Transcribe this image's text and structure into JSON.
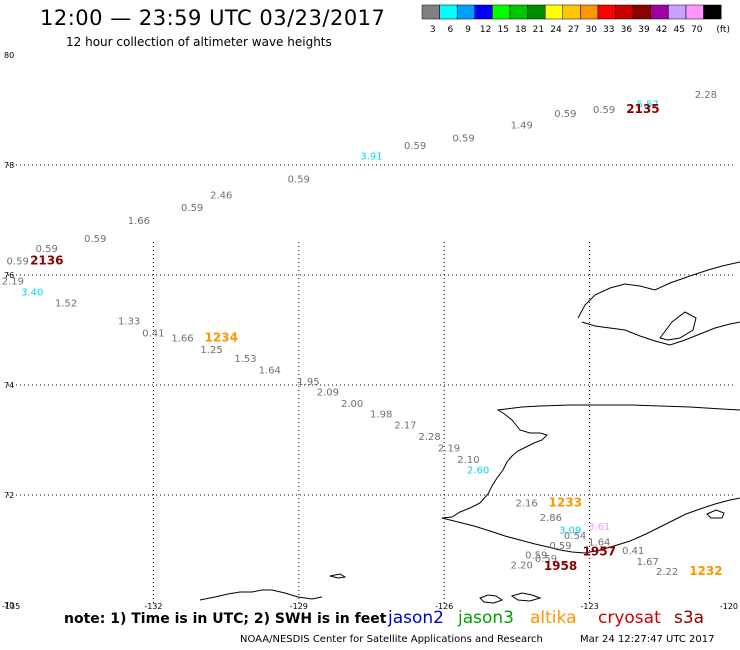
{
  "header": {
    "title": "12:00 — 23:59 UTC 03/23/2017",
    "subtitle": "12 hour collection of altimeter wave heights"
  },
  "legend": {
    "unit": "(ft)",
    "bins": [
      {
        "label": "3",
        "color": "#808080"
      },
      {
        "label": "6",
        "color": "#00ffff"
      },
      {
        "label": "9",
        "color": "#00a0ff"
      },
      {
        "label": "12",
        "color": "#0000ff"
      },
      {
        "label": "15",
        "color": "#00ff00"
      },
      {
        "label": "18",
        "color": "#00c800"
      },
      {
        "label": "21",
        "color": "#008c00"
      },
      {
        "label": "24",
        "color": "#ffff00"
      },
      {
        "label": "27",
        "color": "#ffc800"
      },
      {
        "label": "30",
        "color": "#ff9600"
      },
      {
        "label": "33",
        "color": "#ff0000"
      },
      {
        "label": "36",
        "color": "#c80000"
      },
      {
        "label": "39",
        "color": "#8c0000"
      },
      {
        "label": "42",
        "color": "#a000a0"
      },
      {
        "label": "45",
        "color": "#c8a0ff"
      },
      {
        "label": "70",
        "color": "#ff96ff"
      },
      {
        "label": "",
        "color": "#000000"
      }
    ]
  },
  "axes": {
    "lat_labels": [
      "80",
      "78",
      "76",
      "74",
      "72",
      "70"
    ],
    "lon_labels": [
      "-135",
      "-132",
      "-129",
      "-126",
      "-123",
      "-120"
    ]
  },
  "observations": [
    {
      "text": "2.28",
      "color": "#707070",
      "bold": false,
      "lat": 79.22,
      "lon": -120.6
    },
    {
      "text": "5.57",
      "color": "#00d8e0",
      "bold": false,
      "lat": 79.05,
      "lon": -121.8
    },
    {
      "text": "2135",
      "color": "#8c0000",
      "bold": true,
      "lat": 78.95,
      "lon": -121.9
    },
    {
      "text": "0.59",
      "color": "#707070",
      "bold": false,
      "lat": 78.95,
      "lon": -122.7
    },
    {
      "text": "0.59",
      "color": "#707070",
      "bold": false,
      "lat": 78.87,
      "lon": -123.5
    },
    {
      "text": "1.49",
      "color": "#707070",
      "bold": false,
      "lat": 78.66,
      "lon": -124.4
    },
    {
      "text": "0.59",
      "color": "#707070",
      "bold": false,
      "lat": 78.43,
      "lon": -125.6
    },
    {
      "text": "0.59",
      "color": "#707070",
      "bold": false,
      "lat": 78.29,
      "lon": -126.6
    },
    {
      "text": "3.91",
      "color": "#00d8e0",
      "bold": false,
      "lat": 78.1,
      "lon": -127.5
    },
    {
      "text": "0.59",
      "color": "#707070",
      "bold": false,
      "lat": 77.68,
      "lon": -129.0
    },
    {
      "text": "2.46",
      "color": "#707070",
      "bold": false,
      "lat": 77.39,
      "lon": -130.6
    },
    {
      "text": "0.59",
      "color": "#707070",
      "bold": false,
      "lat": 77.16,
      "lon": -131.2
    },
    {
      "text": "1.66",
      "color": "#707070",
      "bold": false,
      "lat": 76.93,
      "lon": -132.3
    },
    {
      "text": "0.59",
      "color": "#707070",
      "bold": false,
      "lat": 76.6,
      "lon": -133.2
    },
    {
      "text": "0.59",
      "color": "#707070",
      "bold": false,
      "lat": 76.42,
      "lon": -134.2
    },
    {
      "text": "0.59",
      "color": "#707070",
      "bold": false,
      "lat": 76.19,
      "lon": -134.8
    },
    {
      "text": "2136",
      "color": "#8c0000",
      "bold": true,
      "lat": 76.19,
      "lon": -134.2
    },
    {
      "text": "2.19",
      "color": "#707070",
      "bold": false,
      "lat": 75.83,
      "lon": -134.9
    },
    {
      "text": "3.40",
      "color": "#00d8e0",
      "bold": false,
      "lat": 75.63,
      "lon": -134.5
    },
    {
      "text": "1.52",
      "color": "#707070",
      "bold": false,
      "lat": 75.43,
      "lon": -133.8
    },
    {
      "text": "1.33",
      "color": "#707070",
      "bold": false,
      "lat": 75.1,
      "lon": -132.5
    },
    {
      "text": "0.41",
      "color": "#707070",
      "bold": false,
      "lat": 74.88,
      "lon": -132.0
    },
    {
      "text": "1.66",
      "color": "#707070",
      "bold": false,
      "lat": 74.79,
      "lon": -131.4
    },
    {
      "text": "1234",
      "color": "#ff9600",
      "bold": true,
      "lat": 74.79,
      "lon": -130.6
    },
    {
      "text": "1.25",
      "color": "#707070",
      "bold": false,
      "lat": 74.58,
      "lon": -130.8
    },
    {
      "text": "1.53",
      "color": "#707070",
      "bold": false,
      "lat": 74.42,
      "lon": -130.1
    },
    {
      "text": "1.64",
      "color": "#707070",
      "bold": false,
      "lat": 74.21,
      "lon": -129.6
    },
    {
      "text": "1.95",
      "color": "#707070",
      "bold": false,
      "lat": 74.0,
      "lon": -128.8
    },
    {
      "text": "2.09",
      "color": "#707070",
      "bold": false,
      "lat": 73.81,
      "lon": -128.4
    },
    {
      "text": "2.00",
      "color": "#707070",
      "bold": false,
      "lat": 73.6,
      "lon": -127.9
    },
    {
      "text": "1.98",
      "color": "#707070",
      "bold": false,
      "lat": 73.41,
      "lon": -127.3
    },
    {
      "text": "2.17",
      "color": "#707070",
      "bold": false,
      "lat": 73.21,
      "lon": -126.8
    },
    {
      "text": "2.28",
      "color": "#707070",
      "bold": false,
      "lat": 73.0,
      "lon": -126.3
    },
    {
      "text": "2.19",
      "color": "#707070",
      "bold": false,
      "lat": 72.79,
      "lon": -125.9
    },
    {
      "text": "2.10",
      "color": "#707070",
      "bold": false,
      "lat": 72.58,
      "lon": -125.5
    },
    {
      "text": "2.60",
      "color": "#00d8e0",
      "bold": false,
      "lat": 72.39,
      "lon": -125.3
    },
    {
      "text": "2.16",
      "color": "#707070",
      "bold": false,
      "lat": 71.79,
      "lon": -124.3
    },
    {
      "text": "1233",
      "color": "#ff9600",
      "bold": true,
      "lat": 71.79,
      "lon": -123.5
    },
    {
      "text": "2.86",
      "color": "#707070",
      "bold": false,
      "lat": 71.53,
      "lon": -123.8
    },
    {
      "text": "3.61",
      "color": "#ff96ff",
      "bold": false,
      "lat": 71.36,
      "lon": -122.8
    },
    {
      "text": "3.09",
      "color": "#00d8e0",
      "bold": false,
      "lat": 71.3,
      "lon": -123.4
    },
    {
      "text": "0.54",
      "color": "#707070",
      "bold": false,
      "lat": 71.2,
      "lon": -123.3
    },
    {
      "text": "1.64",
      "color": "#707070",
      "bold": false,
      "lat": 71.08,
      "lon": -122.8
    },
    {
      "text": "0.59",
      "color": "#707070",
      "bold": false,
      "lat": 71.02,
      "lon": -123.6
    },
    {
      "text": "0.41",
      "color": "#707070",
      "bold": false,
      "lat": 70.93,
      "lon": -122.1
    },
    {
      "text": "1957",
      "color": "#8c0000",
      "bold": true,
      "lat": 70.9,
      "lon": -122.8
    },
    {
      "text": "0.59",
      "color": "#707070",
      "bold": false,
      "lat": 70.85,
      "lon": -124.1
    },
    {
      "text": "0.59",
      "color": "#707070",
      "bold": false,
      "lat": 70.78,
      "lon": -123.9
    },
    {
      "text": "1.67",
      "color": "#707070",
      "bold": false,
      "lat": 70.73,
      "lon": -121.8
    },
    {
      "text": "2.20",
      "color": "#707070",
      "bold": false,
      "lat": 70.66,
      "lon": -124.4
    },
    {
      "text": "1958",
      "color": "#8c0000",
      "bold": true,
      "lat": 70.64,
      "lon": -123.6
    },
    {
      "text": "2.22",
      "color": "#707070",
      "bold": false,
      "lat": 70.55,
      "lon": -121.4
    },
    {
      "text": "1232",
      "color": "#ff9600",
      "bold": true,
      "lat": 70.55,
      "lon": -120.6
    }
  ],
  "footer": {
    "note": "note: 1) Time is in UTC; 2) SWH is in feet",
    "satellites": [
      {
        "name": "jason2",
        "color": "#0000c8"
      },
      {
        "name": "jason3",
        "color": "#00a000"
      },
      {
        "name": "altika",
        "color": "#ff9600"
      },
      {
        "name": "cryosat",
        "color": "#d00000"
      },
      {
        "name": "s3a",
        "color": "#8c0000"
      }
    ],
    "credit": "NOAA/NESDIS Center for Satellite Applications and Research",
    "timestamp": "Mar 24 12:27:47 UTC 2017"
  }
}
